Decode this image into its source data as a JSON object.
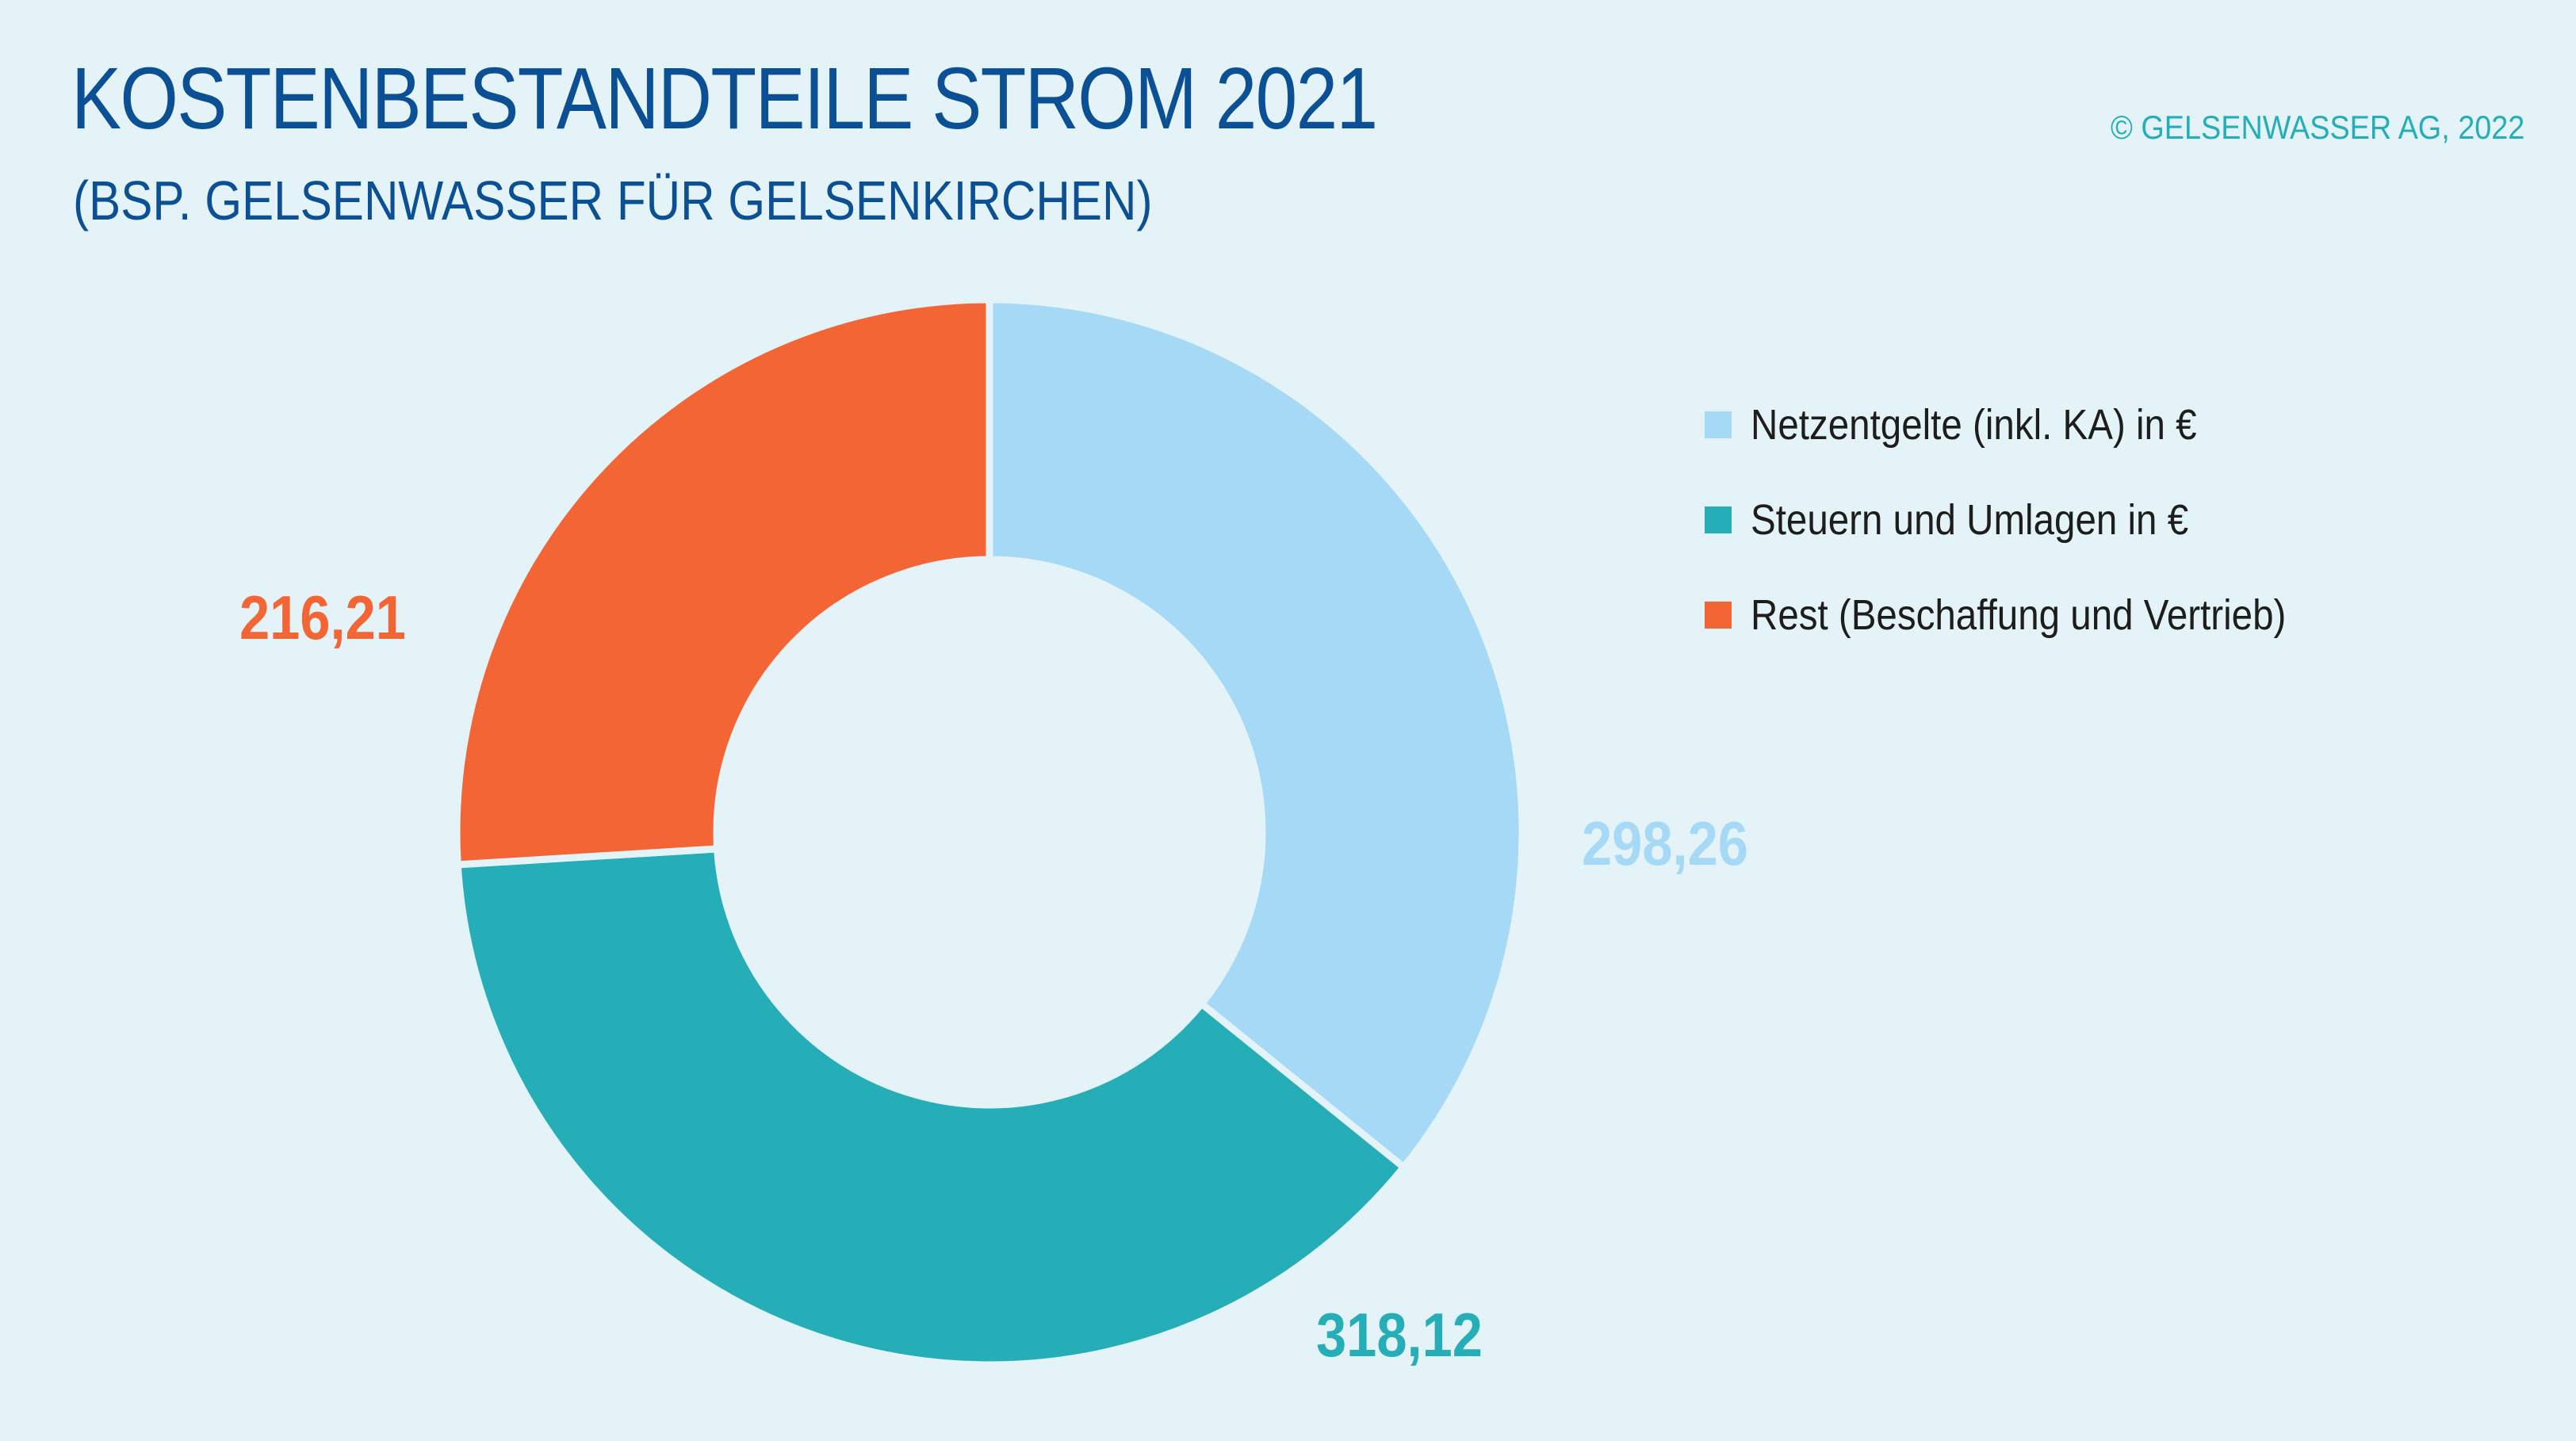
{
  "header": {
    "title": "KOSTENBESTANDTEILE STROM 2021",
    "subtitle": "(BSP. GELSENWASSER FÜR GELSENKIRCHEN)",
    "copyright": "© GELSENWASSER AG, 2022"
  },
  "colors": {
    "background": "#e3f3f7",
    "title": "#0b4f95",
    "copyright": "#25aeb8"
  },
  "chart_data": {
    "type": "pie",
    "variant": "donut",
    "start_angle_deg": 0,
    "direction": "clockwise",
    "legend_position": "right",
    "title": "KOSTENBESTANDTEILE STROM 2021",
    "subtitle": "(BSP. GELSENWASSER FÜR GELSENKIRCHEN)",
    "slices": [
      {
        "name": "Netzentgelte (inkl. KA) in €",
        "value": 298.26,
        "label": "298,26",
        "color": "#a5d9f5"
      },
      {
        "name": "Steuern und Umlagen in €",
        "value": 318.12,
        "label": "318,12",
        "color": "#25aeb8"
      },
      {
        "name": "Rest (Beschaffung und Vertrieb)",
        "value": 216.21,
        "label": "216,21",
        "color": "#f46536"
      }
    ]
  }
}
